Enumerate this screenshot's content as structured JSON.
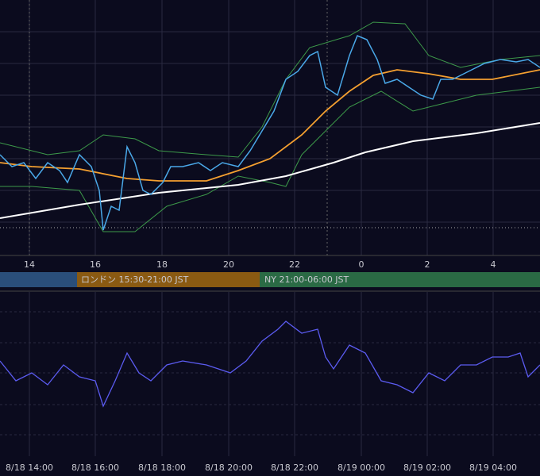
{
  "top_axis": {
    "labels": [
      "14",
      "16",
      "18",
      "20",
      "22",
      "0",
      "2",
      "4"
    ]
  },
  "sessions": [
    {
      "label": "ロンドン 15:30-21:00 JST"
    },
    {
      "label": "NY 21:00-06:00 JST"
    }
  ],
  "bottom_axis": {
    "labels": [
      "8/18 14:00",
      "8/18 16:00",
      "8/18 18:00",
      "8/18 20:00",
      "8/18 22:00",
      "8/19 00:00",
      "8/19 02:00",
      "8/19 04:00"
    ]
  }
}
